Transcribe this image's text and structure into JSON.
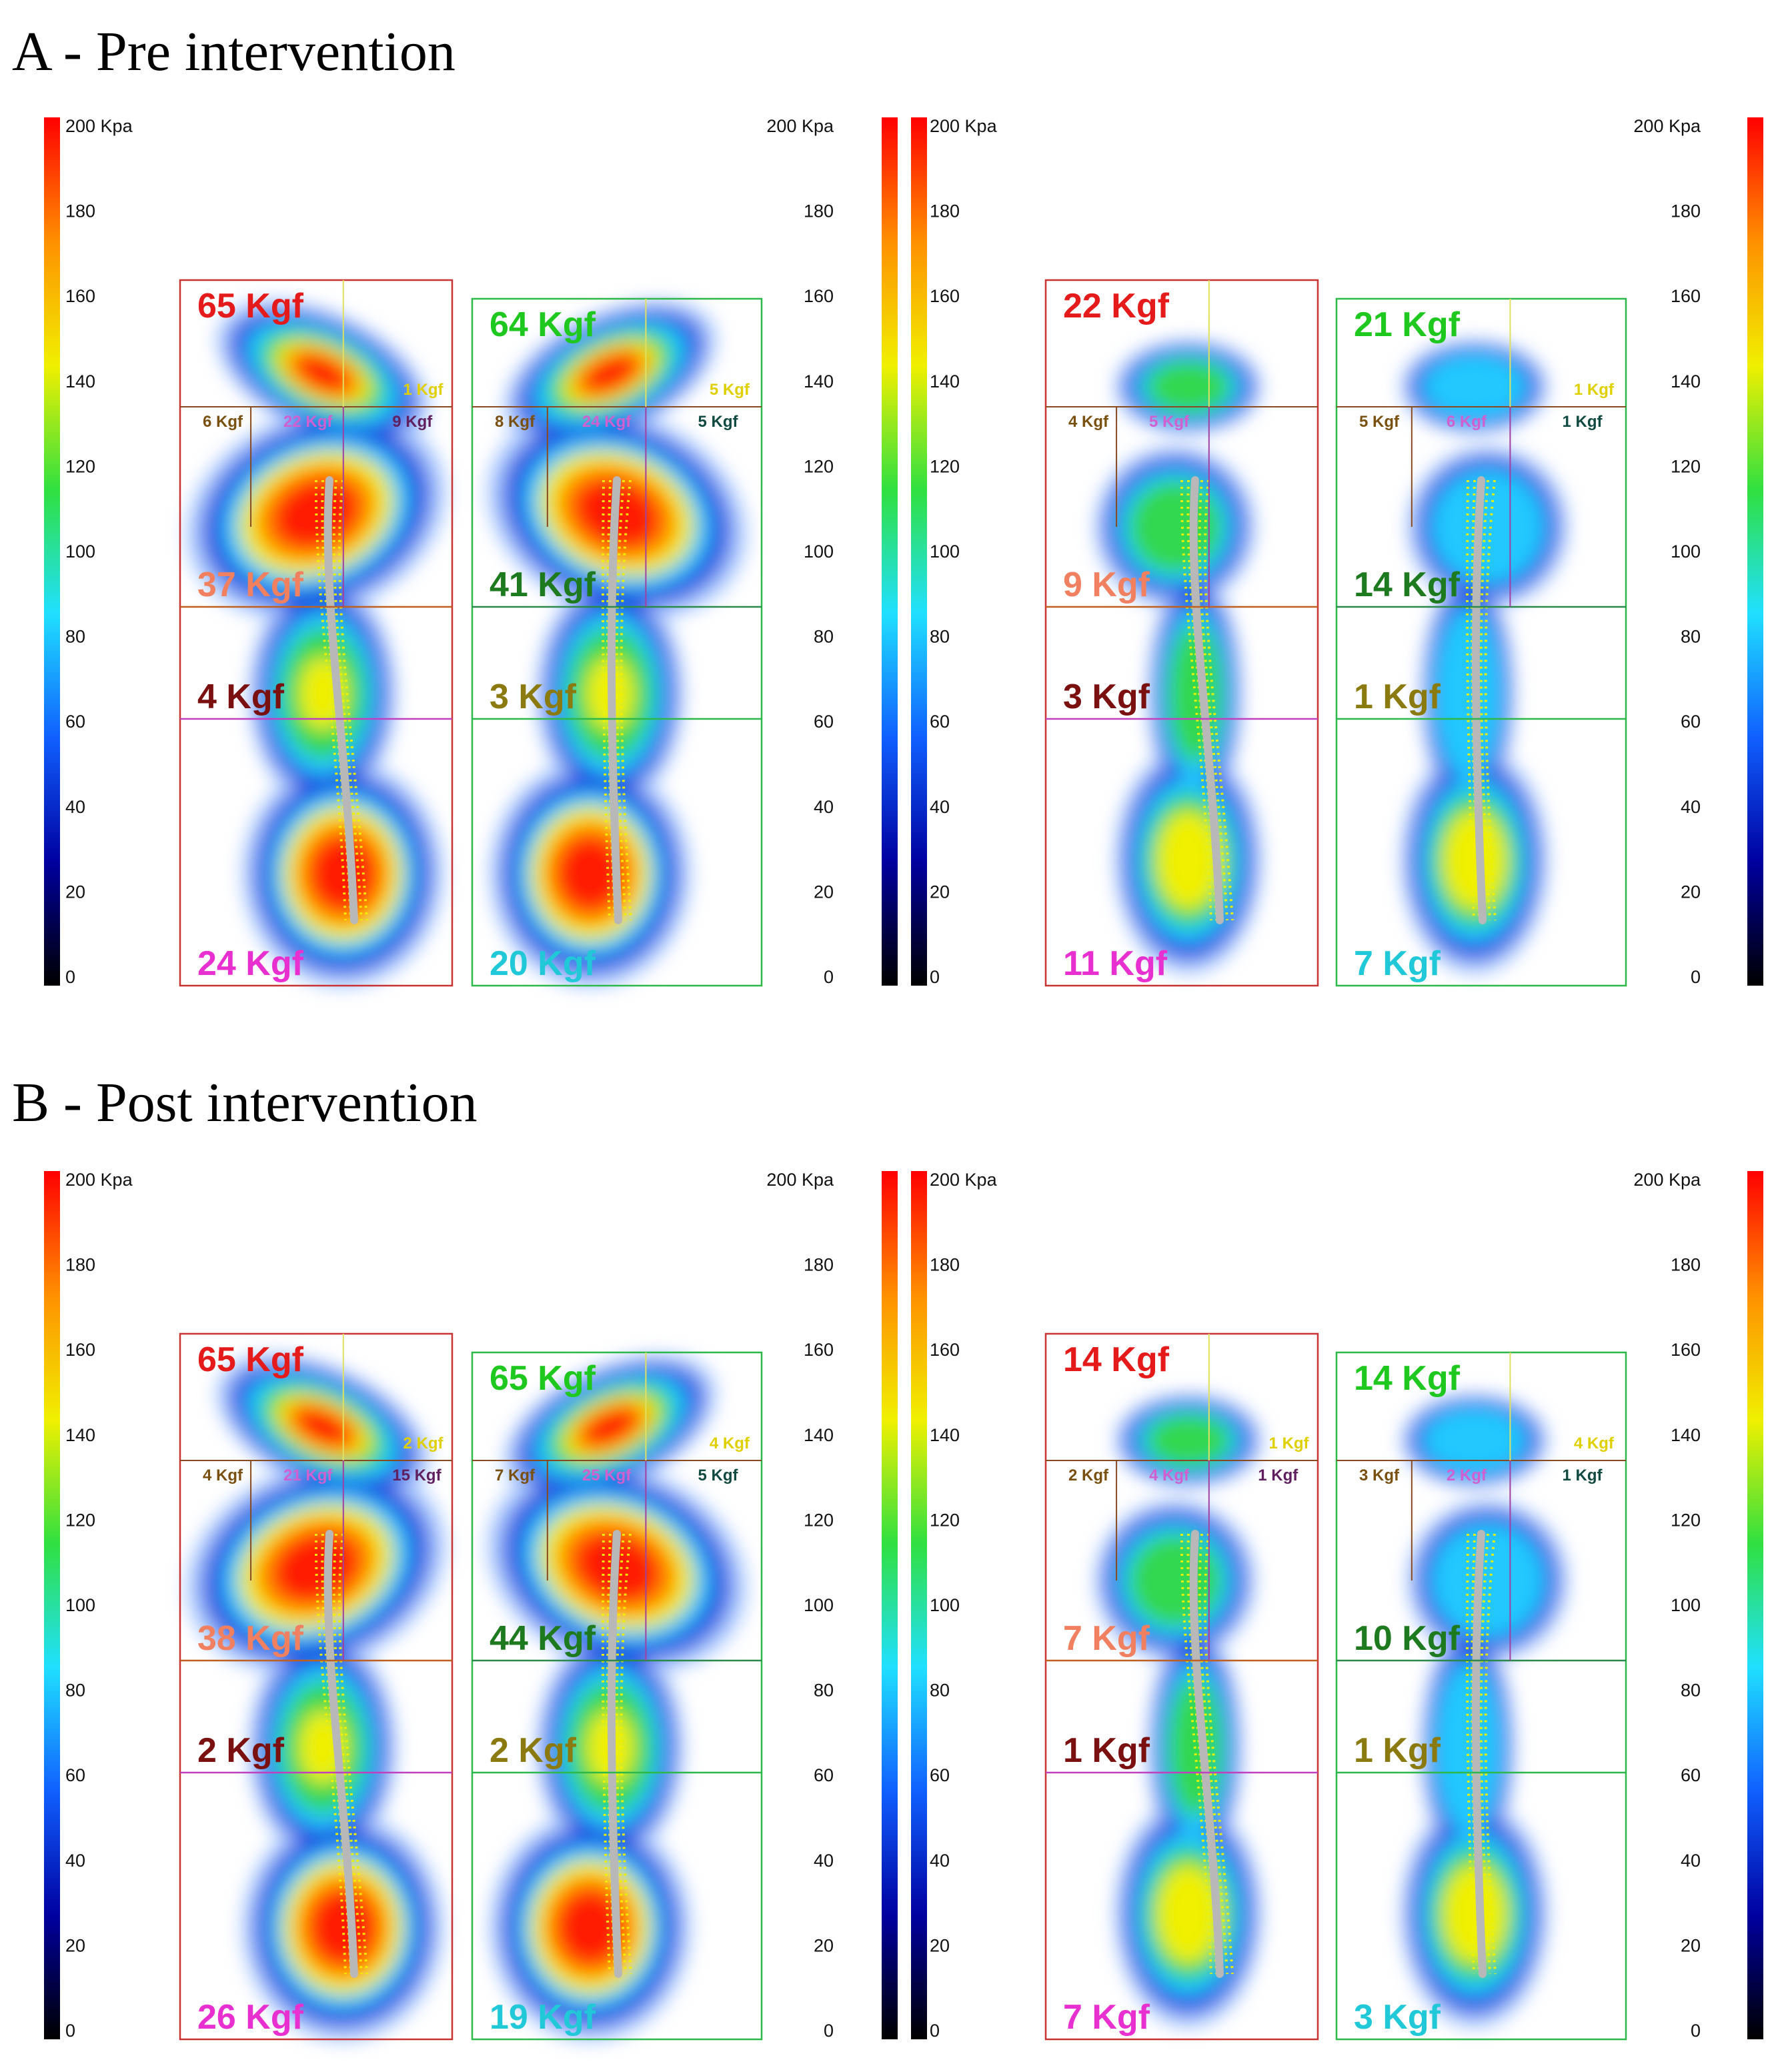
{
  "colors": {
    "left_box": "#c83232",
    "right_box": "#2db84a",
    "heel_label": "#e830d0",
    "toe_label_left": "#e51a1a",
    "toe_label_right": "#1ec81e",
    "forefoot_label_left": "#f08060",
    "forefoot_label_right": "#1e7a1e",
    "midfoot_label_left": "#7a1010",
    "midfoot_label_right": "#8a7a10",
    "heel_label_right": "#20c8d8",
    "cop_line": "#b8b8b8",
    "cop_dots": "#f0f000"
  },
  "scale": {
    "max_label": "200 Kpa",
    "ticks": [
      "180",
      "160",
      "140",
      "120",
      "100",
      "80",
      "60",
      "40",
      "20",
      "0"
    ],
    "colormap": [
      "#000000",
      "#0000a0",
      "#1060ff",
      "#20e0ff",
      "#30e040",
      "#f0f000",
      "#ff9000",
      "#ff0000"
    ]
  },
  "sections": [
    {
      "title": "A - Pre intervention",
      "patients": [
        {
          "left": {
            "toe": "65 Kgf",
            "toe_sub": [
              "1 Kgf"
            ],
            "fore_sub": [
              "6 Kgf",
              "22 Kgf",
              "9 Kgf"
            ],
            "forefoot": "37 Kgf",
            "midfoot": "4 Kgf",
            "heel": "24 Kgf"
          },
          "right": {
            "toe": "64 Kgf",
            "toe_sub": [
              "5 Kgf"
            ],
            "fore_sub": [
              "8 Kgf",
              "24 Kgf",
              "5 Kgf"
            ],
            "forefoot": "41 Kgf",
            "midfoot": "3 Kgf",
            "heel": "20 Kgf"
          }
        },
        {
          "left": {
            "toe": "22 Kgf",
            "toe_sub": [],
            "fore_sub": [
              "4 Kgf",
              "5 Kgf",
              ""
            ],
            "forefoot": "9 Kgf",
            "midfoot": "3 Kgf",
            "heel": "11 Kgf"
          },
          "right": {
            "toe": "21 Kgf",
            "toe_sub": [
              "1 Kgf"
            ],
            "fore_sub": [
              "5 Kgf",
              "6 Kgf",
              "1 Kgf"
            ],
            "forefoot": "14 Kgf",
            "midfoot": "1 Kgf",
            "heel": "7 Kgf"
          }
        }
      ]
    },
    {
      "title": "B - Post intervention",
      "patients": [
        {
          "left": {
            "toe": "65 Kgf",
            "toe_sub": [
              "2 Kgf"
            ],
            "fore_sub": [
              "4 Kgf",
              "21 Kgf",
              "15 Kgf"
            ],
            "forefoot": "38 Kgf",
            "midfoot": "2 Kgf",
            "heel": "26 Kgf"
          },
          "right": {
            "toe": "65 Kgf",
            "toe_sub": [
              "4 Kgf"
            ],
            "fore_sub": [
              "7 Kgf",
              "25 Kgf",
              "5 Kgf"
            ],
            "forefoot": "44 Kgf",
            "midfoot": "2 Kgf",
            "heel": "19 Kgf"
          }
        },
        {
          "left": {
            "toe": "14 Kgf",
            "toe_sub": [
              "1 Kgf"
            ],
            "fore_sub": [
              "2 Kgf",
              "4 Kgf",
              "1 Kgf"
            ],
            "forefoot": "7 Kgf",
            "midfoot": "1 Kgf",
            "heel": "7 Kgf"
          },
          "right": {
            "toe": "14 Kgf",
            "toe_sub": [
              "4 Kgf"
            ],
            "fore_sub": [
              "3 Kgf",
              "2 Kgf",
              "1 Kgf"
            ],
            "forefoot": "10 Kgf",
            "midfoot": "1 Kgf",
            "heel": "3 Kgf"
          }
        }
      ]
    }
  ]
}
